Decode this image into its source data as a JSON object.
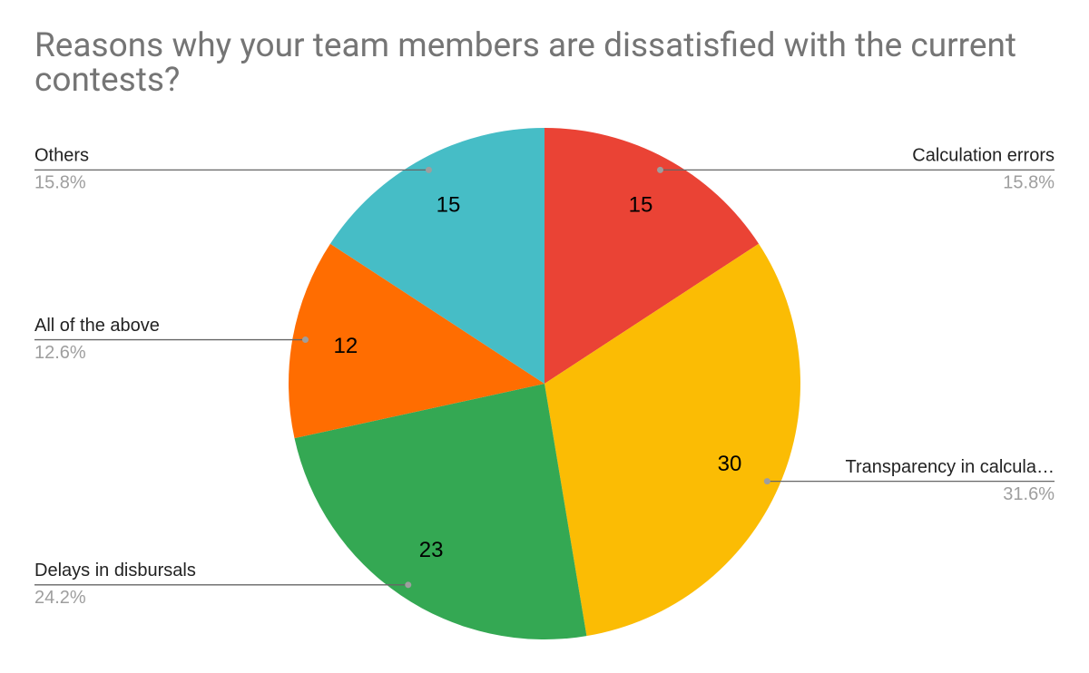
{
  "chart_data": {
    "type": "pie",
    "title": "Reasons why your team members are dissatisfied with the current contests?",
    "categories": [
      "Calculation errors",
      "Transparency in calcula…",
      "Delays in disbursals",
      "All of the above",
      "Others"
    ],
    "values": [
      15,
      30,
      23,
      12,
      15
    ],
    "percent_labels": [
      "15.8%",
      "31.6%",
      "24.2%",
      "12.6%",
      "15.8%"
    ],
    "colors": [
      "#ea4335",
      "#fbbc04",
      "#34a853",
      "#ff6d01",
      "#46bdc6"
    ]
  }
}
